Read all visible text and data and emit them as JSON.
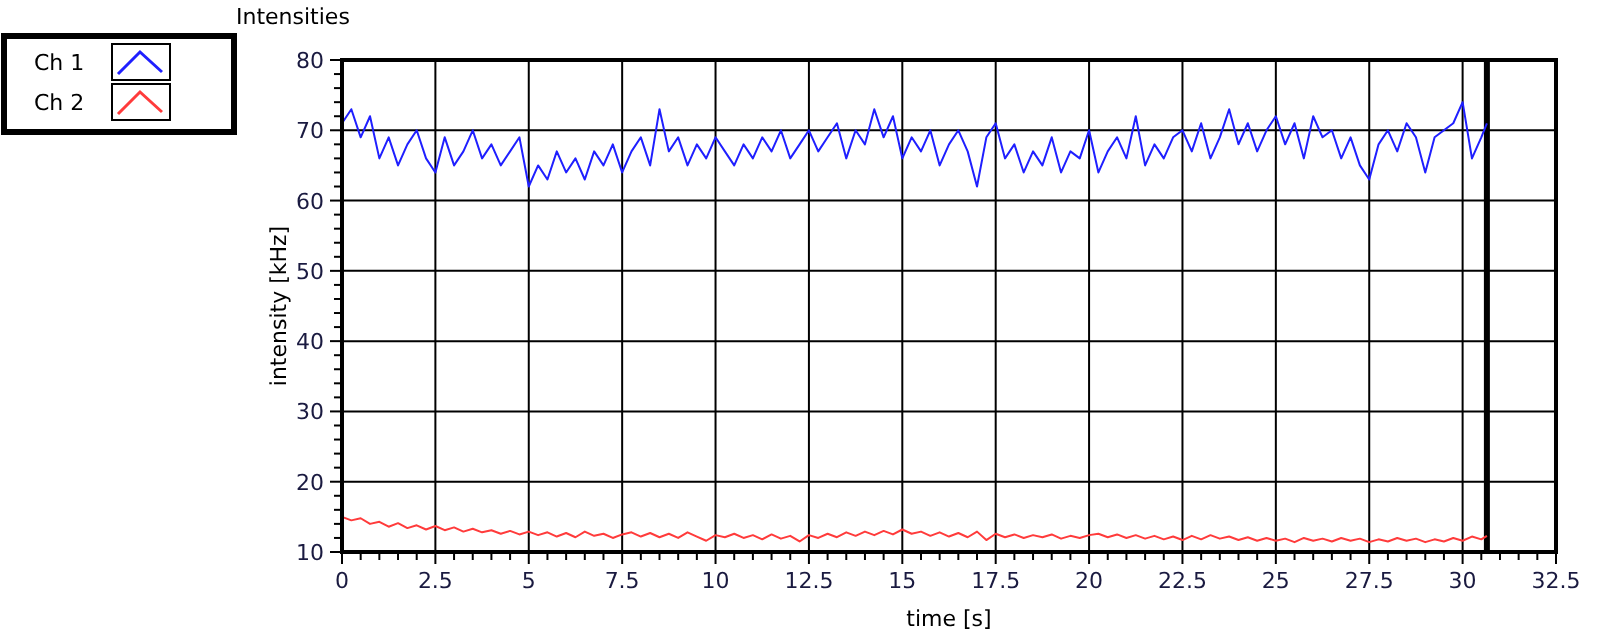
{
  "chart_data": {
    "type": "line",
    "title": "Intensities",
    "xlabel": "time [s]",
    "ylabel": "intensity [kHz]",
    "x": [
      0,
      0.25,
      0.5,
      0.75,
      1,
      1.25,
      1.5,
      1.75,
      2,
      2.25,
      2.5,
      2.75,
      3,
      3.25,
      3.5,
      3.75,
      4,
      4.25,
      4.5,
      4.75,
      5,
      5.25,
      5.5,
      5.75,
      6,
      6.25,
      6.5,
      6.75,
      7,
      7.25,
      7.5,
      7.75,
      8,
      8.25,
      8.5,
      8.75,
      9,
      9.25,
      9.5,
      9.75,
      10,
      10.25,
      10.5,
      10.75,
      11,
      11.25,
      11.5,
      11.75,
      12,
      12.25,
      12.5,
      12.75,
      13,
      13.25,
      13.5,
      13.75,
      14,
      14.25,
      14.5,
      14.75,
      15,
      15.25,
      15.5,
      15.75,
      16,
      16.25,
      16.5,
      16.75,
      17,
      17.25,
      17.5,
      17.75,
      18,
      18.25,
      18.5,
      18.75,
      19,
      19.25,
      19.5,
      19.75,
      20,
      20.25,
      20.5,
      20.75,
      21,
      21.25,
      21.5,
      21.75,
      22,
      22.25,
      22.5,
      22.75,
      23,
      23.25,
      23.5,
      23.75,
      24,
      24.25,
      24.5,
      24.75,
      25,
      25.25,
      25.5,
      25.75,
      26,
      26.25,
      26.5,
      26.75,
      27,
      27.25,
      27.5,
      27.75,
      28,
      28.25,
      28.5,
      28.75,
      29,
      29.25,
      29.5,
      29.75,
      30,
      30.25,
      30.5,
      30.65
    ],
    "series": [
      {
        "name": "Ch 1",
        "color": "#1f1fff",
        "values": [
          71,
          73,
          69,
          72,
          66,
          69,
          65,
          68,
          70,
          66,
          64,
          69,
          65,
          67,
          70,
          66,
          68,
          65,
          67,
          69,
          62,
          65,
          63,
          67,
          64,
          66,
          63,
          67,
          65,
          68,
          64,
          67,
          69,
          65,
          73,
          67,
          69,
          65,
          68,
          66,
          69,
          67,
          65,
          68,
          66,
          69,
          67,
          70,
          66,
          68,
          70,
          67,
          69,
          71,
          66,
          70,
          68,
          73,
          69,
          72,
          66,
          69,
          67,
          70,
          65,
          68,
          70,
          67,
          62,
          69,
          71,
          66,
          68,
          64,
          67,
          65,
          69,
          64,
          67,
          66,
          70,
          64,
          67,
          69,
          66,
          72,
          65,
          68,
          66,
          69,
          70,
          67,
          71,
          66,
          69,
          73,
          68,
          71,
          67,
          70,
          72,
          68,
          71,
          66,
          72,
          69,
          70,
          66,
          69,
          65,
          63,
          68,
          70,
          67,
          71,
          69,
          64,
          69,
          70,
          71,
          74,
          66,
          69,
          71
        ]
      },
      {
        "name": "Ch 2",
        "color": "#ff3b3b",
        "values": [
          15,
          14.5,
          14.8,
          14,
          14.3,
          13.6,
          14.1,
          13.4,
          13.8,
          13.2,
          13.7,
          13.1,
          13.5,
          12.9,
          13.3,
          12.8,
          13.1,
          12.6,
          13,
          12.5,
          12.9,
          12.4,
          12.8,
          12.2,
          12.7,
          12.1,
          12.9,
          12.3,
          12.6,
          12,
          12.5,
          12.8,
          12.2,
          12.7,
          12.1,
          12.6,
          12,
          12.8,
          12.2,
          11.6,
          12.4,
          12.1,
          12.6,
          12,
          12.4,
          11.8,
          12.5,
          11.9,
          12.3,
          11.5,
          12.4,
          12,
          12.6,
          12.1,
          12.8,
          12.3,
          12.9,
          12.4,
          13,
          12.5,
          13.2,
          12.6,
          12.9,
          12.3,
          12.8,
          12.2,
          12.7,
          12.1,
          12.9,
          11.7,
          12.6,
          12.1,
          12.5,
          12,
          12.4,
          12.1,
          12.5,
          11.9,
          12.3,
          12,
          12.4,
          12.6,
          12.1,
          12.5,
          12,
          12.4,
          11.9,
          12.3,
          11.8,
          12.2,
          11.7,
          12.3,
          11.8,
          12.4,
          11.9,
          12.2,
          11.7,
          12.1,
          11.6,
          12,
          11.6,
          11.9,
          11.4,
          12,
          11.6,
          11.9,
          11.5,
          12,
          11.6,
          11.9,
          11.4,
          11.8,
          11.5,
          12,
          11.6,
          11.9,
          11.4,
          11.8,
          11.5,
          12,
          11.6,
          12.2,
          11.8,
          12.3
        ]
      }
    ],
    "xlim": [
      0,
      32.5
    ],
    "xticks": [
      0,
      {
        "value": 0.5,
        "label": null
      },
      {
        "value": 1,
        "label": null
      },
      {
        "value": 1.5,
        "label": null
      },
      {
        "value": 2,
        "label": null
      },
      2.5,
      {
        "value": 3,
        "label": null
      },
      {
        "value": 3.5,
        "label": null
      },
      {
        "value": 4,
        "label": null
      },
      {
        "value": 4.5,
        "label": null
      },
      5,
      {
        "value": 5.5,
        "label": null
      },
      {
        "value": 6,
        "label": null
      },
      {
        "value": 6.5,
        "label": null
      },
      {
        "value": 7,
        "label": null
      },
      7.5,
      {
        "value": 8,
        "label": null
      },
      {
        "value": 8.5,
        "label": null
      },
      {
        "value": 9,
        "label": null
      },
      {
        "value": 9.5,
        "label": null
      },
      10,
      {
        "value": 10.5,
        "label": null
      },
      {
        "value": 11,
        "label": null
      },
      {
        "value": 11.5,
        "label": null
      },
      {
        "value": 12,
        "label": null
      },
      12.5,
      {
        "value": 13,
        "label": null
      },
      {
        "value": 13.5,
        "label": null
      },
      {
        "value": 14,
        "label": null
      },
      {
        "value": 14.5,
        "label": null
      },
      15,
      {
        "value": 15.5,
        "label": null
      },
      {
        "value": 16,
        "label": null
      },
      {
        "value": 16.5,
        "label": null
      },
      {
        "value": 17,
        "label": null
      },
      17.5,
      {
        "value": 18,
        "label": null
      },
      {
        "value": 18.5,
        "label": null
      },
      {
        "value": 19,
        "label": null
      },
      {
        "value": 19.5,
        "label": null
      },
      20,
      {
        "value": 20.5,
        "label": null
      },
      {
        "value": 21,
        "label": null
      },
      {
        "value": 21.5,
        "label": null
      },
      {
        "value": 22,
        "label": null
      },
      22.5,
      {
        "value": 23,
        "label": null
      },
      {
        "value": 23.5,
        "label": null
      },
      {
        "value": 24,
        "label": null
      },
      {
        "value": 24.5,
        "label": null
      },
      25,
      {
        "value": 25.5,
        "label": null
      },
      {
        "value": 26,
        "label": null
      },
      {
        "value": 26.5,
        "label": null
      },
      {
        "value": 27,
        "label": null
      },
      27.5,
      {
        "value": 28,
        "label": null
      },
      {
        "value": 28.5,
        "label": null
      },
      {
        "value": 29,
        "label": null
      },
      {
        "value": 29.5,
        "label": null
      },
      30,
      {
        "value": 30.5,
        "label": null
      },
      {
        "value": 31,
        "label": null
      },
      {
        "value": 31.5,
        "label": null
      },
      {
        "value": 32,
        "label": null
      },
      32.5
    ],
    "ylim": [
      10,
      80
    ],
    "yticks": [
      10,
      {
        "value": 12,
        "label": null
      },
      {
        "value": 14,
        "label": null
      },
      {
        "value": 16,
        "label": null
      },
      {
        "value": 18,
        "label": null
      },
      20,
      {
        "value": 22,
        "label": null
      },
      {
        "value": 24,
        "label": null
      },
      {
        "value": 26,
        "label": null
      },
      {
        "value": 28,
        "label": null
      },
      30,
      {
        "value": 32,
        "label": null
      },
      {
        "value": 34,
        "label": null
      },
      {
        "value": 36,
        "label": null
      },
      {
        "value": 38,
        "label": null
      },
      40,
      {
        "value": 42,
        "label": null
      },
      {
        "value": 44,
        "label": null
      },
      {
        "value": 46,
        "label": null
      },
      {
        "value": 48,
        "label": null
      },
      50,
      {
        "value": 52,
        "label": null
      },
      {
        "value": 54,
        "label": null
      },
      {
        "value": 56,
        "label": null
      },
      {
        "value": 58,
        "label": null
      },
      60,
      {
        "value": 62,
        "label": null
      },
      {
        "value": 64,
        "label": null
      },
      {
        "value": 66,
        "label": null
      },
      {
        "value": 68,
        "label": null
      },
      70,
      {
        "value": 72,
        "label": null
      },
      {
        "value": 74,
        "label": null
      },
      {
        "value": 76,
        "label": null
      },
      {
        "value": 78,
        "label": null
      },
      80
    ],
    "grid": true,
    "legend": "top left",
    "ref_lines": [
      {
        "axis": "x",
        "value": 30.65,
        "color": "#000000"
      }
    ]
  }
}
